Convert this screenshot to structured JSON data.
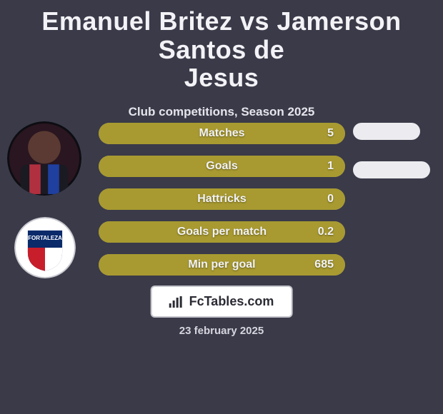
{
  "background_color": "#3a3a49",
  "title": {
    "line1": "Emanuel Britez vs Jamerson Santos de",
    "line2": "Jesus",
    "color": "#f3f2f6",
    "fontsize": 36
  },
  "subtitle": {
    "text": "Club competitions, Season 2025",
    "color": "#e6e5ec",
    "fontsize": 17
  },
  "avatars": {
    "player1": {
      "diameter": 104,
      "bg": "#2a1620",
      "ring": "#0d0d12"
    },
    "player2": {
      "diameter": 86,
      "bg": "#ffffff",
      "ring": "#c9c9d0",
      "club_colors": {
        "top": "#0a2a6a",
        "bottom_left": "#c81e2b",
        "bottom_right": "#ffffff"
      }
    }
  },
  "stats": {
    "bar_bg_color": "#8f8f9c",
    "bar_fill_color": "#a89a30",
    "label_color": "#f2f2f6",
    "value_color": "#f2f2f6",
    "label_fontsize": 16,
    "value_fontsize": 16,
    "rows": [
      {
        "label": "Matches",
        "value": "5",
        "fill_pct": 100
      },
      {
        "label": "Goals",
        "value": "1",
        "fill_pct": 100
      },
      {
        "label": "Hattricks",
        "value": "0",
        "fill_pct": 100
      },
      {
        "label": "Goals per match",
        "value": "0.2",
        "fill_pct": 100
      },
      {
        "label": "Min per goal",
        "value": "685",
        "fill_pct": 100
      }
    ]
  },
  "side_pills": {
    "color": "#ececf0",
    "items": [
      {
        "width_pct": 78
      },
      {
        "width_pct": 90
      }
    ]
  },
  "badge": {
    "bg": "#ffffff",
    "border": "#c4c4cc",
    "text": "FcTables.com",
    "text_color": "#2b2b34",
    "icon_color": "#2b2b34",
    "fontsize": 18
  },
  "date": {
    "text": "23 february 2025",
    "color": "#d6d5dd",
    "fontsize": 15
  }
}
